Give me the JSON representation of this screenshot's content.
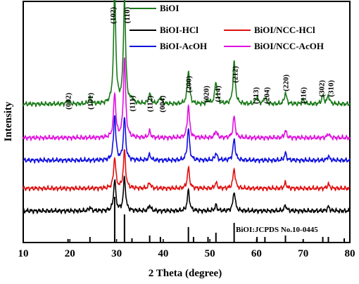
{
  "chart_data": {
    "type": "line",
    "xlabel": "2 Theta (degree)",
    "ylabel": "Intensity",
    "xlim": [
      10,
      80
    ],
    "xticks": [
      10,
      20,
      30,
      40,
      50,
      60,
      70,
      80
    ],
    "y_axis_values": "none",
    "legend_placement": "top-right",
    "legend": [
      {
        "label": "BiOI",
        "color": "#1a7a1a"
      },
      {
        "label": "BiOI-HCl",
        "color": "#000000"
      },
      {
        "label": "BiOI/NCC-HCl",
        "color": "#e01010"
      },
      {
        "label": "BiOI-AcOH",
        "color": "#1010e0"
      },
      {
        "label": "BiOI/NCC-AcOH",
        "color": "#e010e0"
      }
    ],
    "peak_labels": [
      {
        "label": "(002)",
        "x": 19.6
      },
      {
        "label": "(101)",
        "x": 24.3
      },
      {
        "label": "(102)",
        "x": 29.6
      },
      {
        "label": "(110)",
        "x": 31.7
      },
      {
        "label": "(111)",
        "x": 33.3
      },
      {
        "label": "(112)",
        "x": 37.1
      },
      {
        "label": "(004)",
        "x": 39.4
      },
      {
        "label": "(200)",
        "x": 45.4
      },
      {
        "label": "(020)",
        "x": 49.6
      },
      {
        "label": "(114)",
        "x": 51.3
      },
      {
        "label": "(212)",
        "x": 55.2
      },
      {
        "label": "(213)",
        "x": 60.1
      },
      {
        "label": "(204)",
        "x": 61.8
      },
      {
        "label": "(220)",
        "x": 66.2
      },
      {
        "label": "(116)",
        "x": 70.0
      },
      {
        "label": "(302)",
        "x": 74.2
      },
      {
        "label": "(310)",
        "x": 75.4
      }
    ],
    "series": [
      {
        "name": "BiOI",
        "color": "#1a7a1a",
        "peaks": [
          [
            19.6,
            6
          ],
          [
            24.3,
            9
          ],
          [
            29.6,
            158
          ],
          [
            31.7,
            148
          ],
          [
            33.3,
            6
          ],
          [
            37.1,
            14
          ],
          [
            39.4,
            10
          ],
          [
            45.4,
            48
          ],
          [
            49.6,
            5
          ],
          [
            51.3,
            32
          ],
          [
            55.2,
            60
          ],
          [
            60.1,
            10
          ],
          [
            61.8,
            10
          ],
          [
            66.2,
            16
          ],
          [
            70.0,
            6
          ],
          [
            74.2,
            12
          ],
          [
            75.4,
            12
          ]
        ]
      },
      {
        "name": "BiOI/NCC-AcOH",
        "color": "#e010e0",
        "peaks": [
          [
            29.6,
            63
          ],
          [
            31.7,
            113
          ],
          [
            37.1,
            9
          ],
          [
            45.4,
            46
          ],
          [
            51.3,
            10
          ],
          [
            55.2,
            30
          ],
          [
            66.2,
            10
          ],
          [
            75.4,
            6
          ]
        ]
      },
      {
        "name": "BiOI-AcOH",
        "color": "#1010e0",
        "peaks": [
          [
            29.6,
            64
          ],
          [
            31.7,
            60
          ],
          [
            37.1,
            8
          ],
          [
            45.4,
            45
          ],
          [
            51.3,
            10
          ],
          [
            55.2,
            30
          ],
          [
            66.2,
            10
          ],
          [
            75.4,
            6
          ]
        ]
      },
      {
        "name": "BiOI/NCC-HCl",
        "color": "#e01010",
        "peaks": [
          [
            29.6,
            44
          ],
          [
            31.7,
            53
          ],
          [
            37.1,
            8
          ],
          [
            45.4,
            29
          ],
          [
            51.3,
            8
          ],
          [
            55.2,
            28
          ],
          [
            66.2,
            8
          ],
          [
            75.4,
            6
          ]
        ]
      },
      {
        "name": "BiOI-HCl",
        "color": "#000000",
        "peaks": [
          [
            24.3,
            5
          ],
          [
            29.6,
            44
          ],
          [
            31.7,
            47
          ],
          [
            37.1,
            8
          ],
          [
            45.4,
            29
          ],
          [
            51.3,
            8
          ],
          [
            55.2,
            28
          ],
          [
            66.2,
            8
          ],
          [
            75.4,
            6
          ]
        ]
      }
    ],
    "reference": {
      "label": "BiOI:JCPDS No.10-0445",
      "lines": [
        [
          19.6,
          5
        ],
        [
          24.3,
          8
        ],
        [
          29.6,
          65
        ],
        [
          31.7,
          40
        ],
        [
          33.3,
          6
        ],
        [
          37.1,
          10
        ],
        [
          39.4,
          8
        ],
        [
          45.4,
          22
        ],
        [
          46.5,
          8
        ],
        [
          49.6,
          8
        ],
        [
          51.3,
          14
        ],
        [
          55.2,
          28
        ],
        [
          60.1,
          8
        ],
        [
          61.8,
          8
        ],
        [
          66.2,
          10
        ],
        [
          70.0,
          5
        ],
        [
          74.2,
          8
        ],
        [
          75.4,
          8
        ],
        [
          78.8,
          6
        ]
      ]
    }
  }
}
